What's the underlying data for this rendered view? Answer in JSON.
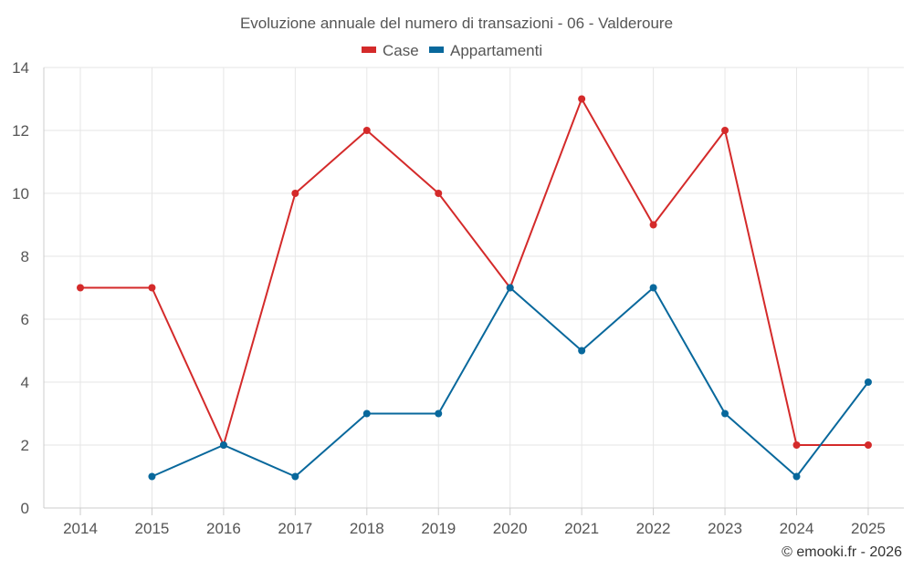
{
  "chart_data": {
    "type": "line",
    "title": "Evoluzione annuale del numero di transazioni - 06 - Valderoure",
    "x": [
      "2014",
      "2015",
      "2016",
      "2017",
      "2018",
      "2019",
      "2020",
      "2021",
      "2022",
      "2023",
      "2024",
      "2025"
    ],
    "series": [
      {
        "name": "Case",
        "color": "#d42a2a",
        "values": [
          7,
          7,
          2,
          10,
          12,
          10,
          7,
          13,
          9,
          12,
          2,
          2
        ]
      },
      {
        "name": "Appartamenti",
        "color": "#08689c",
        "values": [
          null,
          1,
          2,
          1,
          3,
          3,
          7,
          5,
          7,
          3,
          1,
          4
        ]
      }
    ],
    "ylim": [
      0,
      14
    ],
    "yticks": [
      "0",
      "2",
      "4",
      "6",
      "8",
      "10",
      "12",
      "14"
    ],
    "grid": true,
    "legend": "top-center"
  },
  "credit": "© emooki.fr - 2026"
}
